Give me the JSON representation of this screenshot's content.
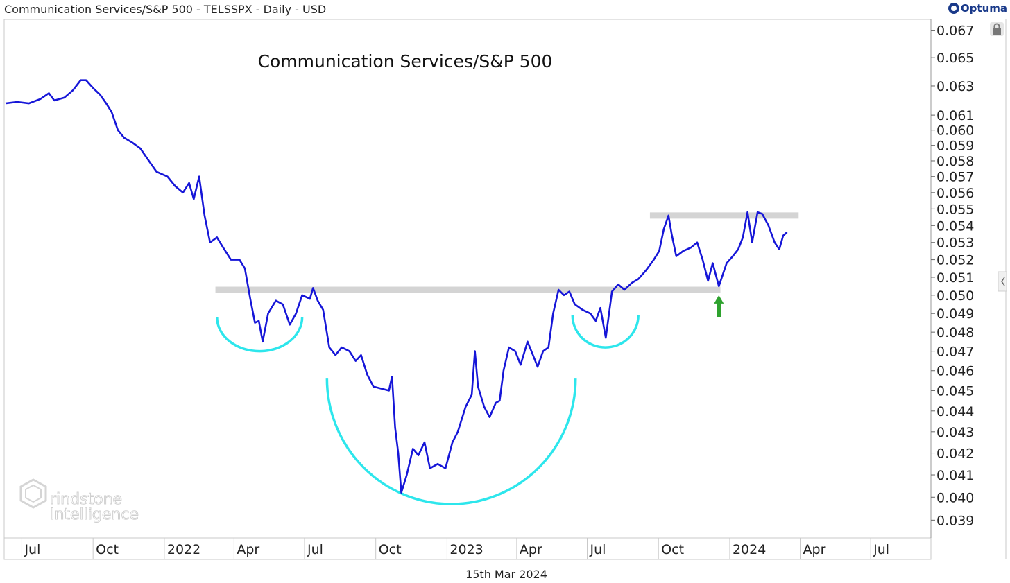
{
  "header": {
    "title": "Communication Services/S&P 500 - TELSSPX - Daily - USD",
    "brand": "Optuma"
  },
  "chart_data": {
    "type": "line",
    "title": "Communication Services/S&P 500",
    "date_label": "15th Mar 2024",
    "watermark": [
      "rindstone",
      "Intelligence"
    ],
    "y_scale": "log",
    "ylim": [
      0.0383,
      0.0677
    ],
    "y_ticks": [
      "0.067",
      "0.065",
      "0.063",
      "0.061",
      "0.060",
      "0.059",
      "0.058",
      "0.057",
      "0.056",
      "0.055",
      "0.054",
      "0.053",
      "0.052",
      "0.051",
      "0.050",
      "0.049",
      "0.048",
      "0.047",
      "0.046",
      "0.045",
      "0.044",
      "0.043",
      "0.042",
      "0.041",
      "0.040",
      "0.039"
    ],
    "x_ticks": [
      {
        "label": "Jul",
        "date": "2021-07"
      },
      {
        "label": "Oct",
        "date": "2021-10"
      },
      {
        "label": "2022",
        "date": "2022-01"
      },
      {
        "label": "Apr",
        "date": "2022-04"
      },
      {
        "label": "Jul",
        "date": "2022-07"
      },
      {
        "label": "Oct",
        "date": "2022-10"
      },
      {
        "label": "2023",
        "date": "2023-01"
      },
      {
        "label": "Apr",
        "date": "2023-04"
      },
      {
        "label": "Jul",
        "date": "2023-07"
      },
      {
        "label": "Oct",
        "date": "2023-10"
      },
      {
        "label": "2024",
        "date": "2024-01"
      },
      {
        "label": "Apr",
        "date": "2024-04"
      },
      {
        "label": "Jul",
        "date": "2024-07"
      }
    ],
    "xlim": [
      "2021-06-10",
      "2024-09-15"
    ],
    "series": [
      {
        "color": "#1616d8",
        "points": [
          [
            "2021-06-10",
            0.0618
          ],
          [
            "2021-06-25",
            0.0619
          ],
          [
            "2021-07-10",
            0.0618
          ],
          [
            "2021-07-25",
            0.0621
          ],
          [
            "2021-08-05",
            0.0625
          ],
          [
            "2021-08-12",
            0.062
          ],
          [
            "2021-08-25",
            0.0622
          ],
          [
            "2021-09-05",
            0.0627
          ],
          [
            "2021-09-15",
            0.0634
          ],
          [
            "2021-09-22",
            0.0634
          ],
          [
            "2021-10-02",
            0.0628
          ],
          [
            "2021-10-10",
            0.0624
          ],
          [
            "2021-10-18",
            0.0618
          ],
          [
            "2021-10-25",
            0.0612
          ],
          [
            "2021-11-02",
            0.06
          ],
          [
            "2021-11-10",
            0.0595
          ],
          [
            "2021-11-20",
            0.0592
          ],
          [
            "2021-12-01",
            0.0588
          ],
          [
            "2021-12-12",
            0.058
          ],
          [
            "2021-12-22",
            0.0573
          ],
          [
            "2022-01-05",
            0.057
          ],
          [
            "2022-01-15",
            0.0564
          ],
          [
            "2022-01-25",
            0.056
          ],
          [
            "2022-02-02",
            0.0566
          ],
          [
            "2022-02-08",
            0.0556
          ],
          [
            "2022-02-15",
            0.057
          ],
          [
            "2022-02-22",
            0.0546
          ],
          [
            "2022-03-01",
            0.053
          ],
          [
            "2022-03-10",
            0.0533
          ],
          [
            "2022-03-18",
            0.0527
          ],
          [
            "2022-03-28",
            0.052
          ],
          [
            "2022-04-08",
            0.052
          ],
          [
            "2022-04-15",
            0.0515
          ],
          [
            "2022-04-22",
            0.0498
          ],
          [
            "2022-04-28",
            0.0485
          ],
          [
            "2022-05-03",
            0.0486
          ],
          [
            "2022-05-08",
            0.0475
          ],
          [
            "2022-05-15",
            0.049
          ],
          [
            "2022-05-25",
            0.0497
          ],
          [
            "2022-06-03",
            0.0495
          ],
          [
            "2022-06-12",
            0.0484
          ],
          [
            "2022-06-20",
            0.049
          ],
          [
            "2022-06-28",
            0.05
          ],
          [
            "2022-07-08",
            0.0498
          ],
          [
            "2022-07-12",
            0.0504
          ],
          [
            "2022-07-18",
            0.0497
          ],
          [
            "2022-07-25",
            0.0492
          ],
          [
            "2022-08-02",
            0.0472
          ],
          [
            "2022-08-10",
            0.0468
          ],
          [
            "2022-08-18",
            0.0472
          ],
          [
            "2022-08-28",
            0.047
          ],
          [
            "2022-09-05",
            0.0465
          ],
          [
            "2022-09-12",
            0.0468
          ],
          [
            "2022-09-20",
            0.0458
          ],
          [
            "2022-09-28",
            0.0452
          ],
          [
            "2022-10-08",
            0.0451
          ],
          [
            "2022-10-18",
            0.045
          ],
          [
            "2022-10-22",
            0.0457
          ],
          [
            "2022-10-26",
            0.0432
          ],
          [
            "2022-10-30",
            0.042
          ],
          [
            "2022-11-03",
            0.0402
          ],
          [
            "2022-11-10",
            0.041
          ],
          [
            "2022-11-18",
            0.0422
          ],
          [
            "2022-11-25",
            0.0419
          ],
          [
            "2022-12-03",
            0.0425
          ],
          [
            "2022-12-10",
            0.0413
          ],
          [
            "2022-12-20",
            0.0415
          ],
          [
            "2022-12-30",
            0.0413
          ],
          [
            "2023-01-08",
            0.0425
          ],
          [
            "2023-01-15",
            0.043
          ],
          [
            "2023-01-25",
            0.0442
          ],
          [
            "2023-02-02",
            0.0448
          ],
          [
            "2023-02-06",
            0.047
          ],
          [
            "2023-02-10",
            0.0452
          ],
          [
            "2023-02-18",
            0.0442
          ],
          [
            "2023-02-25",
            0.0437
          ],
          [
            "2023-03-05",
            0.0444
          ],
          [
            "2023-03-10",
            0.0445
          ],
          [
            "2023-03-15",
            0.046
          ],
          [
            "2023-03-22",
            0.0472
          ],
          [
            "2023-03-30",
            0.047
          ],
          [
            "2023-04-06",
            0.0463
          ],
          [
            "2023-04-15",
            0.0475
          ],
          [
            "2023-04-22",
            0.0468
          ],
          [
            "2023-04-28",
            0.0462
          ],
          [
            "2023-05-05",
            0.047
          ],
          [
            "2023-05-12",
            0.0472
          ],
          [
            "2023-05-18",
            0.049
          ],
          [
            "2023-05-25",
            0.0503
          ],
          [
            "2023-06-01",
            0.05
          ],
          [
            "2023-06-08",
            0.0502
          ],
          [
            "2023-06-15",
            0.0495
          ],
          [
            "2023-06-25",
            0.0492
          ],
          [
            "2023-07-05",
            0.049
          ],
          [
            "2023-07-12",
            0.0486
          ],
          [
            "2023-07-18",
            0.0493
          ],
          [
            "2023-07-25",
            0.0477
          ],
          [
            "2023-08-02",
            0.0502
          ],
          [
            "2023-08-10",
            0.0506
          ],
          [
            "2023-08-18",
            0.0503
          ],
          [
            "2023-08-28",
            0.0507
          ],
          [
            "2023-09-05",
            0.0509
          ],
          [
            "2023-09-15",
            0.0514
          ],
          [
            "2023-09-25",
            0.052
          ],
          [
            "2023-10-02",
            0.0525
          ],
          [
            "2023-10-08",
            0.0538
          ],
          [
            "2023-10-14",
            0.0546
          ],
          [
            "2023-10-18",
            0.0535
          ],
          [
            "2023-10-24",
            0.0522
          ],
          [
            "2023-11-02",
            0.0525
          ],
          [
            "2023-11-12",
            0.0527
          ],
          [
            "2023-11-20",
            0.053
          ],
          [
            "2023-11-27",
            0.052
          ],
          [
            "2023-12-04",
            0.0508
          ],
          [
            "2023-12-10",
            0.0518
          ],
          [
            "2023-12-18",
            0.0505
          ],
          [
            "2023-12-28",
            0.0518
          ],
          [
            "2024-01-05",
            0.0522
          ],
          [
            "2024-01-12",
            0.0526
          ],
          [
            "2024-01-18",
            0.0533
          ],
          [
            "2024-01-24",
            0.0548
          ],
          [
            "2024-01-30",
            0.053
          ],
          [
            "2024-02-06",
            0.0548
          ],
          [
            "2024-02-12",
            0.0547
          ],
          [
            "2024-02-20",
            0.054
          ],
          [
            "2024-02-28",
            0.053
          ],
          [
            "2024-03-05",
            0.0526
          ],
          [
            "2024-03-10",
            0.0534
          ],
          [
            "2024-03-15",
            0.0536
          ]
        ]
      }
    ],
    "annotations": {
      "resistance_levels": [
        {
          "value": 0.0503,
          "from": "2022-03-08",
          "to": "2023-12-20"
        },
        {
          "value": 0.0546,
          "from": "2023-09-20",
          "to": "2024-03-30"
        }
      ],
      "arcs": [
        {
          "from": "2022-03-10",
          "to": "2022-06-28",
          "top": 0.0488,
          "bottom": 0.047
        },
        {
          "from": "2022-07-30",
          "to": "2023-06-16",
          "top": 0.0456,
          "bottom": 0.0397
        },
        {
          "from": "2023-06-12",
          "to": "2023-09-05",
          "top": 0.0489,
          "bottom": 0.0472
        }
      ],
      "arrow": {
        "date": "2023-12-18",
        "from_value": 0.0488,
        "to_value": 0.05,
        "color": "#2ea22e"
      }
    }
  }
}
